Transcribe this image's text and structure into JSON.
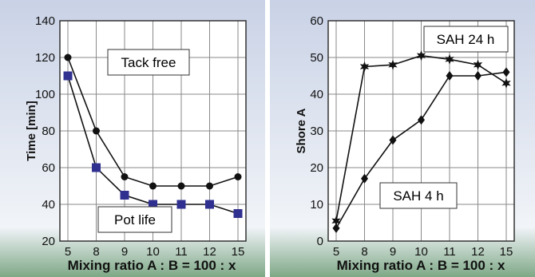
{
  "chart_data": [
    {
      "type": "line",
      "xlabel": "Mixing ratio A : B = 100 : x",
      "ylabel": "Time [min]",
      "categories": [
        "5",
        "8",
        "9",
        "10",
        "11",
        "12",
        "15"
      ],
      "ylim": [
        20,
        140
      ],
      "yticks": [
        20,
        40,
        60,
        80,
        100,
        120,
        140
      ],
      "grid": true,
      "series": [
        {
          "name": "Tack free",
          "marker": "circle",
          "color": "#111111",
          "values": [
            120,
            80,
            55,
            50,
            50,
            50,
            55
          ]
        },
        {
          "name": "Pot life",
          "marker": "square",
          "color": "#303090",
          "values": [
            110,
            60,
            45,
            40,
            40,
            40,
            35
          ]
        }
      ]
    },
    {
      "type": "line",
      "xlabel": "Mixing ratio A : B = 100 : x",
      "ylabel": "Shore A",
      "categories": [
        "5",
        "8",
        "9",
        "10",
        "11",
        "12",
        "15"
      ],
      "ylim": [
        0,
        60
      ],
      "yticks": [
        0,
        10,
        20,
        30,
        40,
        50,
        60
      ],
      "grid": true,
      "series": [
        {
          "name": "SAH 24 h",
          "marker": "star",
          "color": "#111111",
          "values": [
            5.5,
            47.5,
            48,
            50.5,
            49.5,
            48,
            43
          ]
        },
        {
          "name": "SAH 4 h",
          "marker": "diamond",
          "color": "#111111",
          "values": [
            3.5,
            17,
            27.5,
            33,
            45,
            45,
            46
          ]
        }
      ]
    }
  ]
}
